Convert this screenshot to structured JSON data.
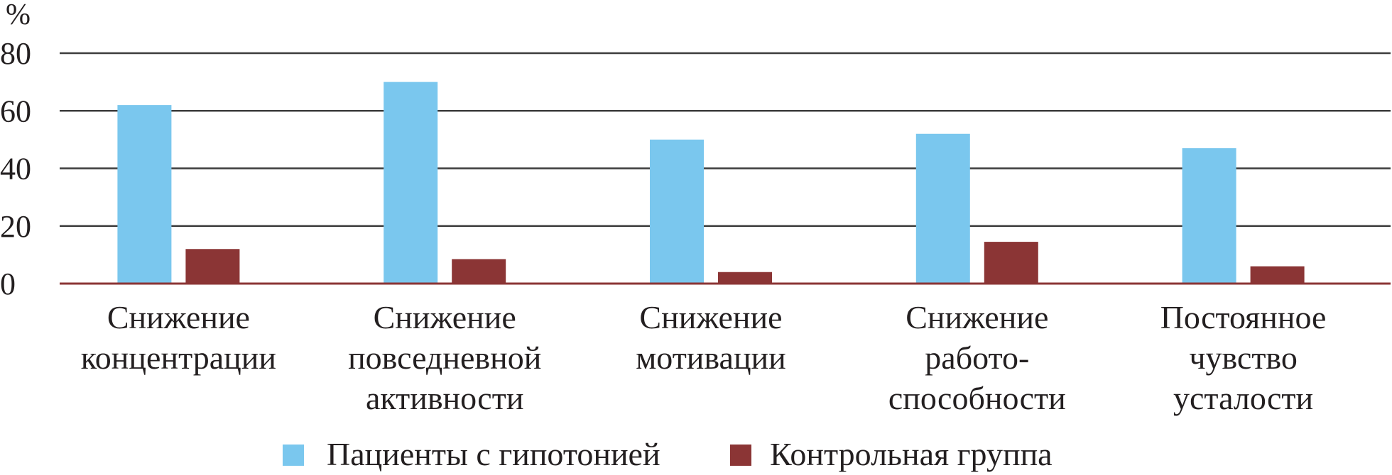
{
  "chart_data": {
    "type": "bar",
    "ylabel": "%",
    "ylim": [
      0,
      80
    ],
    "yticks": [
      0,
      20,
      40,
      60,
      80
    ],
    "grid": true,
    "legend_position": "bottom",
    "categories": [
      [
        "Снижение",
        "концентрации"
      ],
      [
        "Снижение",
        "повседневной",
        "активности"
      ],
      [
        "Снижение",
        "мотивации"
      ],
      [
        "Снижение",
        "работо-",
        "способности"
      ],
      [
        "Постоянное",
        "чувство",
        "усталости"
      ]
    ],
    "series": [
      {
        "name": "Пациенты с гипотонией",
        "color": "#7ac7ee",
        "values": [
          62,
          70,
          50,
          52,
          47
        ]
      },
      {
        "name": "Контрольная группа",
        "color": "#8b3535",
        "values": [
          12,
          8.5,
          4,
          14.5,
          6
        ]
      }
    ],
    "colors": {
      "gridline": "#3d3d3d",
      "baseline": "#8b3535"
    }
  }
}
